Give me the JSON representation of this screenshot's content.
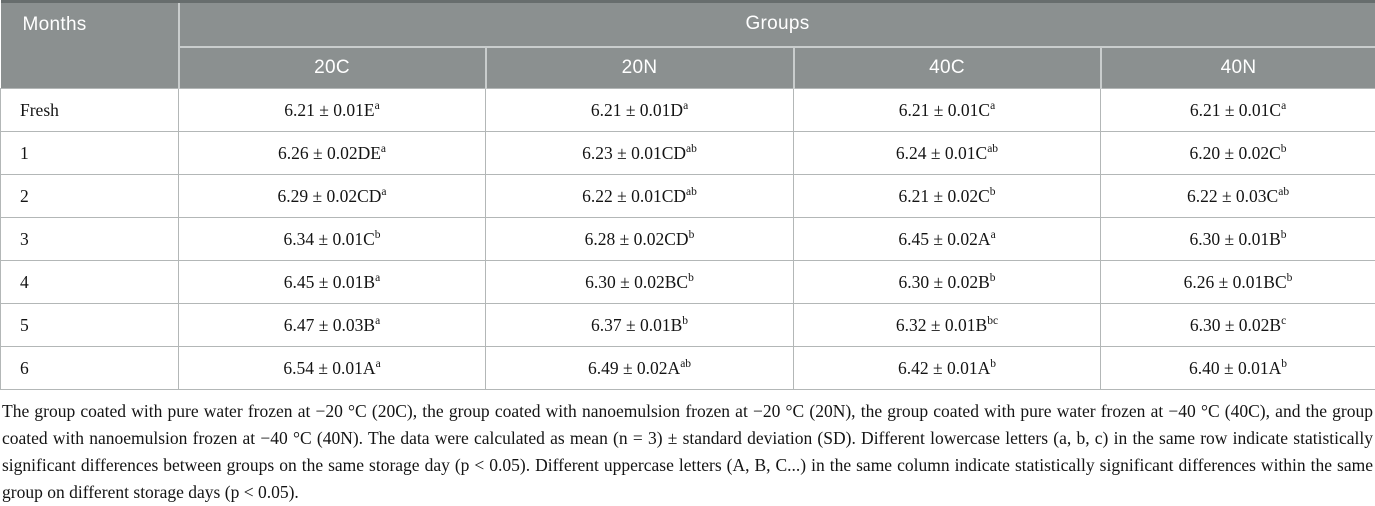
{
  "colors": {
    "header_bg": "#8b9090",
    "header_divider": "#c9cdcd",
    "header_top_border": "#676d6d",
    "body_border": "#b3b7b7",
    "header_text": "#ffffff",
    "body_text": "#141414"
  },
  "table": {
    "months_header": "Months",
    "groups_header": "Groups",
    "group_columns": [
      "20C",
      "20N",
      "40C",
      "40N"
    ],
    "rows": [
      {
        "month": "Fresh",
        "cells": [
          {
            "text": "6.21 ± 0.01E",
            "sup": "a"
          },
          {
            "text": "6.21 ± 0.01D",
            "sup": "a"
          },
          {
            "text": "6.21 ± 0.01C",
            "sup": "a"
          },
          {
            "text": "6.21 ± 0.01C",
            "sup": "a"
          }
        ]
      },
      {
        "month": "1",
        "cells": [
          {
            "text": "6.26 ± 0.02DE",
            "sup": "a"
          },
          {
            "text": "6.23 ± 0.01CD",
            "sup": "ab"
          },
          {
            "text": "6.24 ± 0.01C",
            "sup": "ab"
          },
          {
            "text": "6.20 ± 0.02C",
            "sup": "b"
          }
        ]
      },
      {
        "month": "2",
        "cells": [
          {
            "text": "6.29 ± 0.02CD",
            "sup": "a"
          },
          {
            "text": "6.22 ± 0.01CD",
            "sup": "ab"
          },
          {
            "text": "6.21 ± 0.02C",
            "sup": "b"
          },
          {
            "text": "6.22 ± 0.03C",
            "sup": "ab"
          }
        ]
      },
      {
        "month": "3",
        "cells": [
          {
            "text": "6.34 ± 0.01C",
            "sup": "b"
          },
          {
            "text": "6.28 ± 0.02CD",
            "sup": "b"
          },
          {
            "text": "6.45 ± 0.02A",
            "sup": "a"
          },
          {
            "text": "6.30 ± 0.01B",
            "sup": "b"
          }
        ]
      },
      {
        "month": "4",
        "cells": [
          {
            "text": "6.45 ± 0.01B",
            "sup": "a"
          },
          {
            "text": "6.30 ± 0.02BC",
            "sup": "b"
          },
          {
            "text": "6.30 ± 0.02B",
            "sup": "b"
          },
          {
            "text": "6.26 ± 0.01BC",
            "sup": "b"
          }
        ]
      },
      {
        "month": "5",
        "cells": [
          {
            "text": "6.47 ± 0.03B",
            "sup": "a"
          },
          {
            "text": "6.37 ± 0.01B",
            "sup": "b"
          },
          {
            "text": "6.32 ± 0.01B",
            "sup": "bc"
          },
          {
            "text": "6.30 ± 0.02B",
            "sup": "c"
          }
        ]
      },
      {
        "month": "6",
        "cells": [
          {
            "text": "6.54 ± 0.01A",
            "sup": "a"
          },
          {
            "text": "6.49 ± 0.02A",
            "sup": "ab"
          },
          {
            "text": "6.42 ± 0.01A",
            "sup": "b"
          },
          {
            "text": "6.40 ± 0.01A",
            "sup": "b"
          }
        ]
      }
    ]
  },
  "footnote": "The group coated with pure water frozen at −20 °C (20C), the group coated with nanoemulsion frozen at −20 °C (20N), the group coated with pure water frozen at −40 °C (40C), and the group coated with nanoemulsion frozen at −40 °C (40N). The data were calculated as mean (n = 3) ± standard deviation (SD). Different lowercase letters (a, b, c) in the same row indicate statistically significant differences between groups on the same storage day (p < 0.05). Different uppercase letters (A, B, C...) in the same column indicate statistically significant differences within the same group on different storage days (p < 0.05)."
}
